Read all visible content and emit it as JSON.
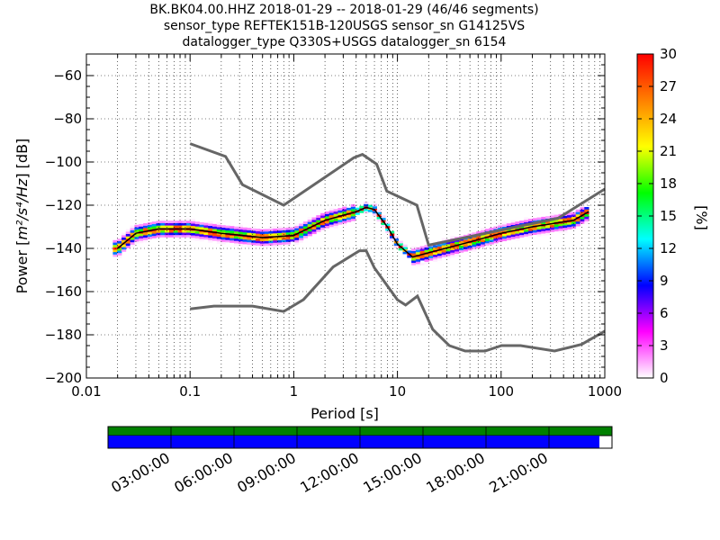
{
  "header": {
    "line1": "BK.BK04.00.HHZ   2018-01-29 -- 2018-01-29  (46/46 segments)",
    "line2": "sensor_type REFTEK151B-120USGS sensor_sn G14125VS",
    "line3": "datalogger_type Q330S+USGS datalogger_sn 6154"
  },
  "chart_data": [
    {
      "type": "heatmap",
      "title": "BK.BK04.00.HHZ   2018-01-29 -- 2018-01-29  (46/46 segments)",
      "xlabel": "Period [s]",
      "ylabel": "Power [m²/s⁴/Hz] [dB]",
      "ylabel_parts": {
        "prefix": "Power [",
        "units": "m²/s⁴/Hz",
        "suffix": "] [dB]"
      },
      "xscale": "log",
      "xlim": [
        0.01,
        1000
      ],
      "ylim": [
        -200,
        -50
      ],
      "x_tick_labels": [
        "0.01",
        "0.1",
        "1",
        "10",
        "100",
        "1000"
      ],
      "y_tick_values": [
        -200,
        -180,
        -160,
        -140,
        -120,
        -100,
        -80,
        -60
      ],
      "grid": true,
      "colormap": "pqlx",
      "colorbar": {
        "label": "[%]",
        "range": [
          0,
          30
        ],
        "tick_values": [
          0,
          3,
          6,
          9,
          12,
          15,
          18,
          21,
          24,
          27,
          30
        ],
        "colors": [
          "#ffffff",
          "#ff00ff",
          "#0000ff",
          "#00ffff",
          "#00ff00",
          "#ffff00",
          "#ff8000",
          "#ff0000"
        ]
      },
      "mean_curve": {
        "period": [
          0.02,
          0.03,
          0.05,
          0.1,
          0.2,
          0.5,
          1,
          2,
          4,
          5,
          6,
          8,
          10,
          14,
          20,
          50,
          100,
          200,
          500,
          700
        ],
        "db": [
          -140,
          -133,
          -131,
          -131,
          -133,
          -135,
          -134,
          -127,
          -123,
          -121,
          -122,
          -130,
          -138,
          -144,
          -142,
          -137,
          -133,
          -130,
          -127,
          -123
        ]
      },
      "nhnm": {
        "period": [
          0.1,
          0.22,
          0.32,
          0.8,
          3.8,
          4.6,
          6.3,
          7.9,
          15.4,
          20,
          354.8,
          1000
        ],
        "db": [
          -91.5,
          -97.4,
          -110.5,
          -120,
          -98,
          -96.5,
          -101,
          -113.5,
          -120,
          -138.5,
          -126,
          -112.5
        ]
      },
      "nlnm": {
        "period": [
          0.1,
          0.17,
          0.4,
          0.8,
          1.24,
          2.4,
          4.3,
          5,
          6,
          10,
          12,
          15.6,
          21.9,
          31.6,
          45,
          70,
          101,
          154,
          328,
          600,
          1000
        ],
        "db": [
          -168,
          -166.7,
          -166.7,
          -169.2,
          -163.7,
          -148.6,
          -141.1,
          -141.1,
          -149,
          -163.8,
          -166.2,
          -162.1,
          -177.5,
          -185,
          -187.5,
          -187.5,
          -185,
          -185,
          -187.5,
          -184.4,
          -178.3
        ]
      }
    },
    {
      "type": "timeline",
      "tick_labels": [
        "03:00:00",
        "06:00:00",
        "09:00:00",
        "12:00:00",
        "15:00:00",
        "18:00:00",
        "21:00:00"
      ],
      "data_available_until": 0.975,
      "used_colors": {
        "available": "#008000",
        "used": "#0000ff"
      }
    }
  ]
}
